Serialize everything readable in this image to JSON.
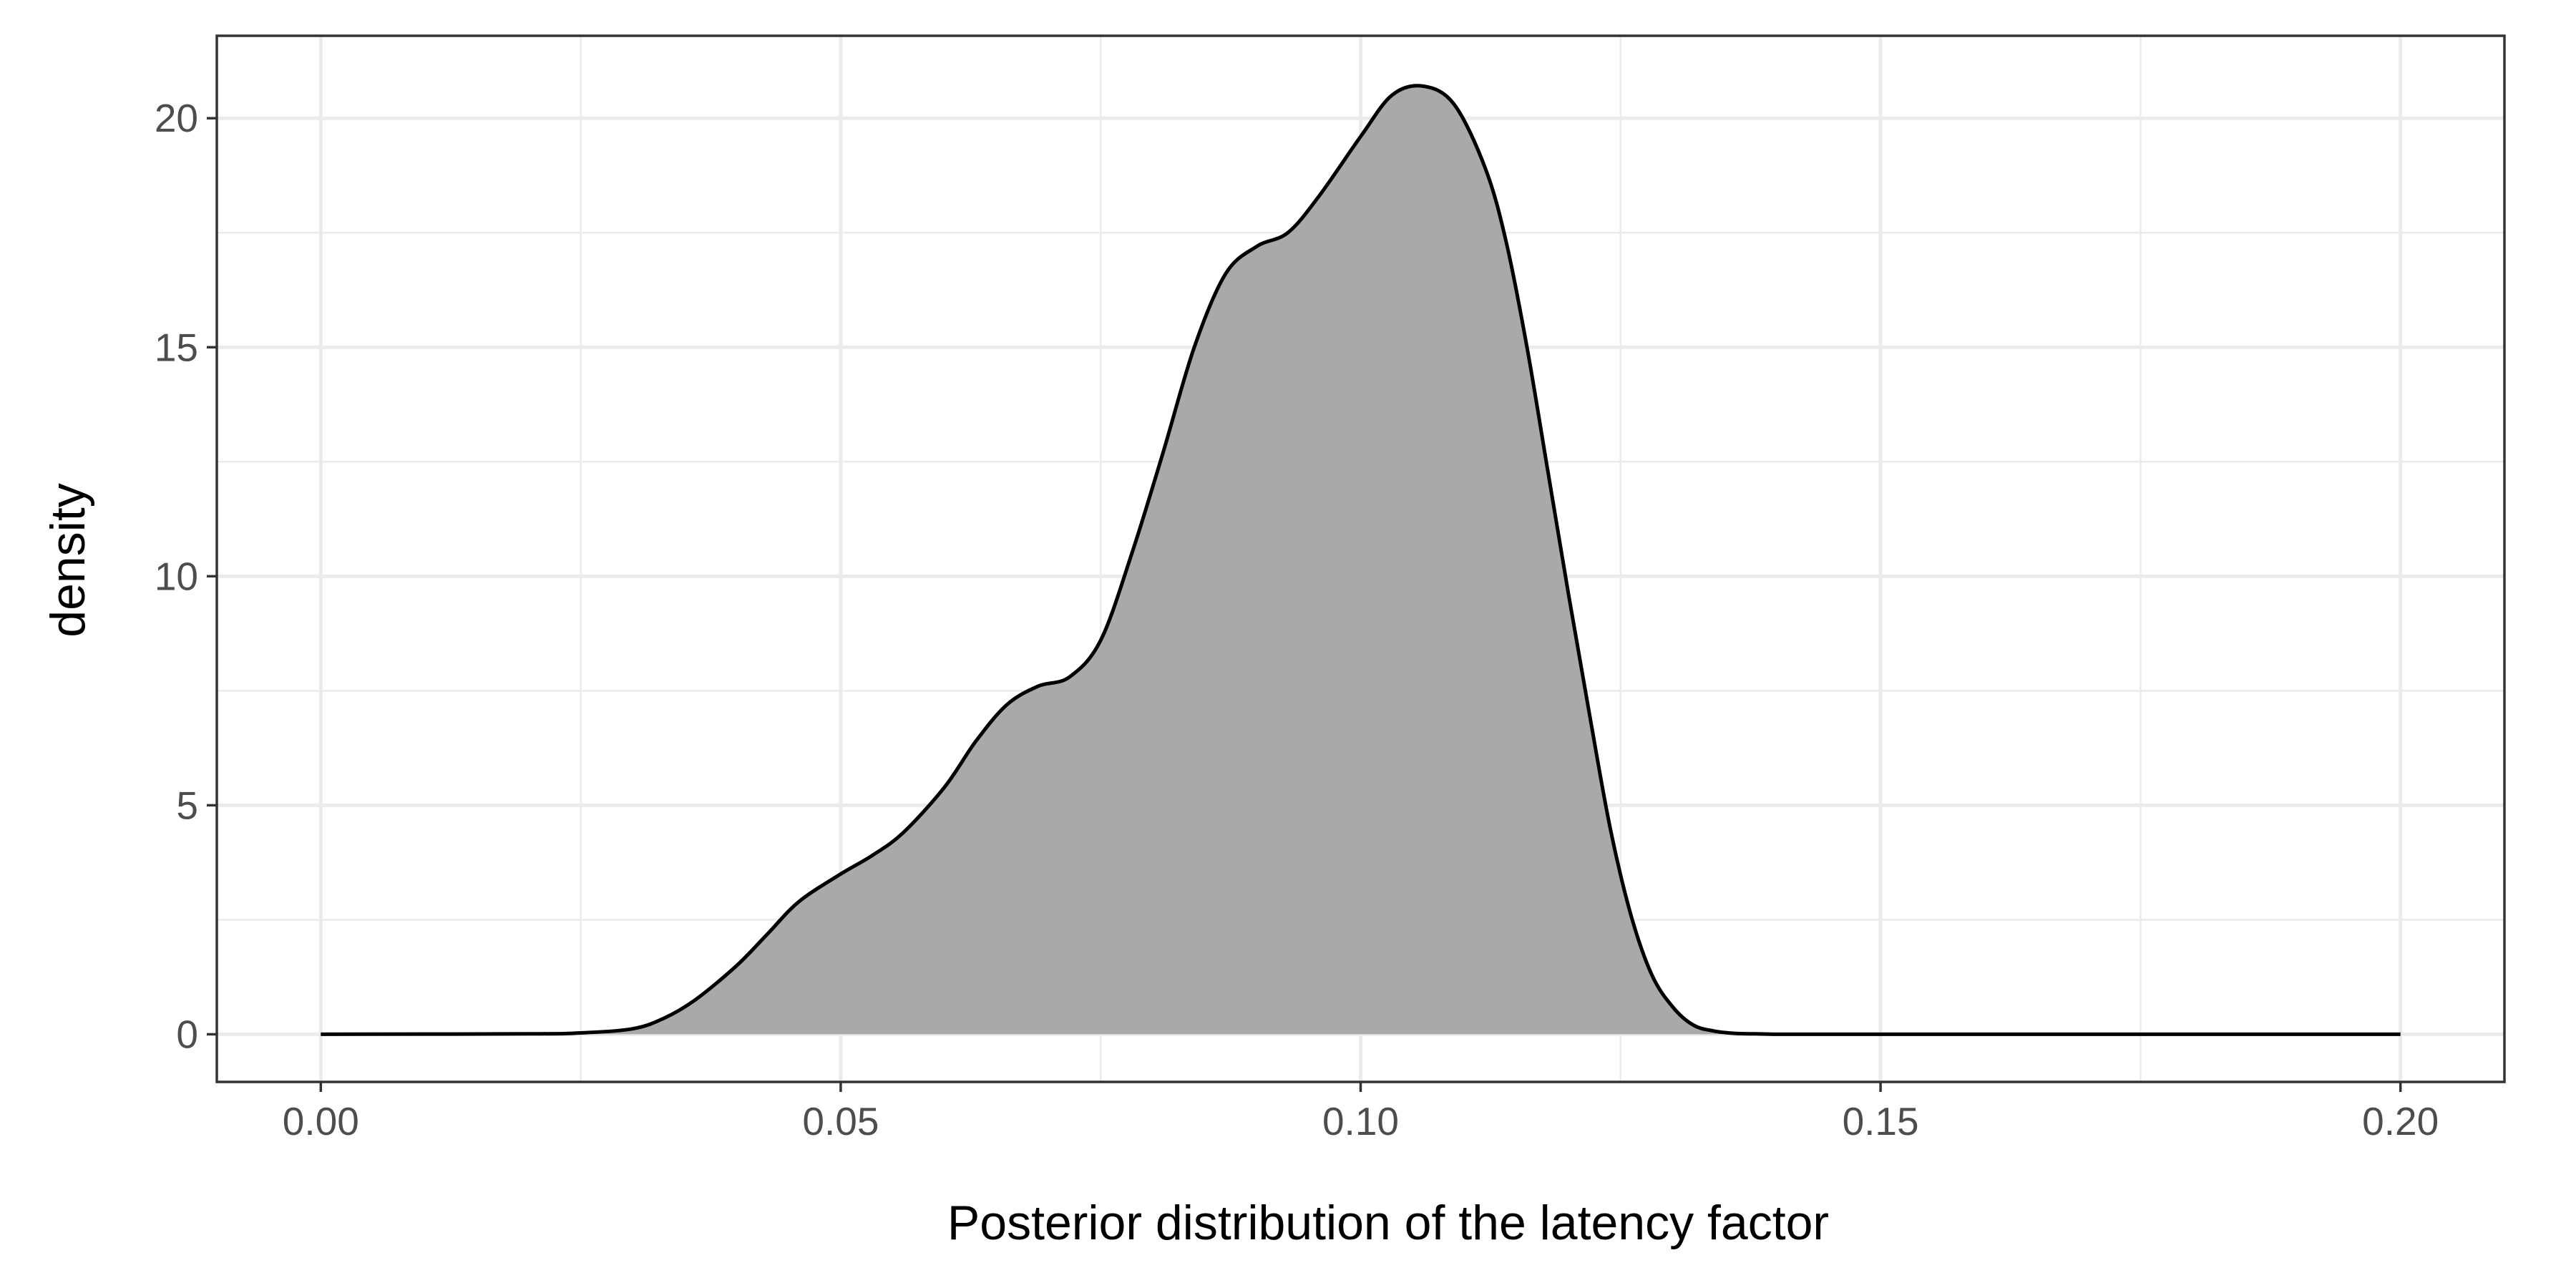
{
  "chart_data": {
    "type": "area",
    "title": "",
    "xlabel": "Posterior distribution of the latency factor",
    "ylabel": "density",
    "xlim": [
      -0.01,
      0.21
    ],
    "ylim": [
      -1.04,
      21.8
    ],
    "x_ticks": [
      "0.00",
      "0.05",
      "0.10",
      "0.15",
      "0.20"
    ],
    "x_tick_values": [
      0.0,
      0.05,
      0.1,
      0.15,
      0.2
    ],
    "y_ticks": [
      "0",
      "5",
      "10",
      "15",
      "20"
    ],
    "y_tick_values": [
      0,
      5,
      10,
      15,
      20
    ],
    "grid": true,
    "legend": "none",
    "fill_color": "#a9a9a9",
    "line_color": "#000000",
    "series": [
      {
        "x": [
          0.0,
          0.02,
          0.025,
          0.03,
          0.033,
          0.036,
          0.04,
          0.043,
          0.046,
          0.05,
          0.053,
          0.056,
          0.06,
          0.063,
          0.066,
          0.069,
          0.072,
          0.075,
          0.078,
          0.081,
          0.084,
          0.087,
          0.09,
          0.093,
          0.096,
          0.1,
          0.103,
          0.106,
          0.109,
          0.112,
          0.114,
          0.116,
          0.118,
          0.12,
          0.122,
          0.124,
          0.126,
          0.128,
          0.13,
          0.132,
          0.134,
          0.136,
          0.138,
          0.14,
          0.143,
          0.146,
          0.15,
          0.2
        ],
        "y": [
          0.0,
          0.01,
          0.03,
          0.12,
          0.35,
          0.75,
          1.5,
          2.2,
          2.9,
          3.5,
          3.9,
          4.4,
          5.4,
          6.4,
          7.2,
          7.6,
          7.8,
          8.6,
          10.5,
          12.7,
          15.0,
          16.6,
          17.2,
          17.5,
          18.3,
          19.6,
          20.5,
          20.7,
          20.3,
          18.9,
          17.3,
          15.0,
          12.3,
          9.6,
          7.0,
          4.5,
          2.6,
          1.3,
          0.6,
          0.2,
          0.07,
          0.02,
          0.01,
          0.0,
          0.0,
          0.0,
          0.0,
          0.0
        ]
      }
    ]
  }
}
